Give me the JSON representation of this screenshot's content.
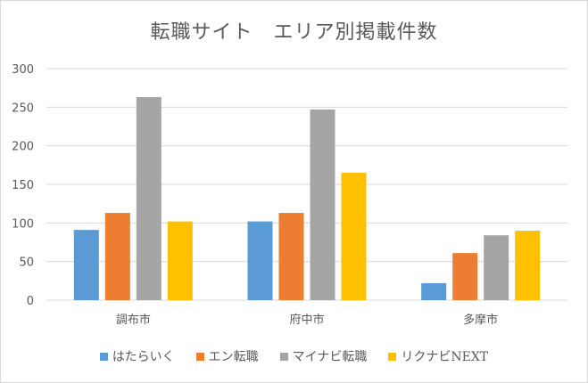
{
  "chart_data": {
    "type": "bar",
    "title": "転職サイト　エリア別掲載件数",
    "xlabel": "",
    "ylabel": "",
    "ylim": [
      0,
      300
    ],
    "yticks": [
      "0",
      "50",
      "100",
      "150",
      "200",
      "250",
      "300"
    ],
    "grid": true,
    "legend_position": "bottom",
    "categories": [
      "調布市",
      "府中市",
      "多摩市"
    ],
    "series": [
      {
        "name": "はたらいく",
        "color": "#5b9bd5",
        "values": [
          91,
          102,
          22
        ]
      },
      {
        "name": "エン転職",
        "color": "#ed7d31",
        "values": [
          113,
          113,
          61
        ]
      },
      {
        "name": "マイナビ転職",
        "color": "#a5a5a5",
        "values": [
          263,
          247,
          84
        ]
      },
      {
        "name": "リクナビNEXT",
        "color": "#ffc000",
        "values": [
          102,
          165,
          90
        ]
      }
    ]
  }
}
